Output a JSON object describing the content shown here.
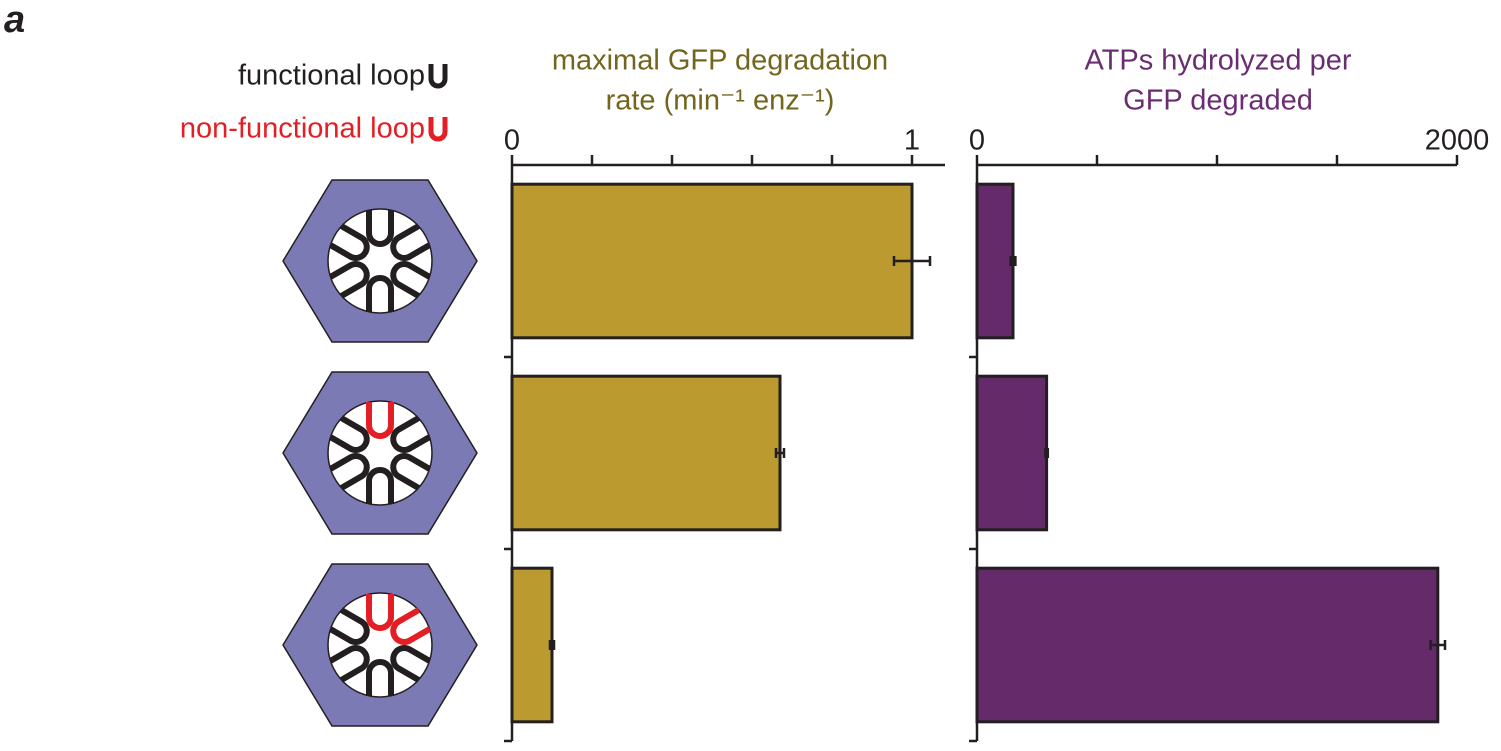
{
  "panel_label": "a",
  "legend": [
    {
      "name": "functional loop",
      "color": "#231f20"
    },
    {
      "name": "non-functional loop",
      "color": "#e31e24"
    }
  ],
  "chart_data": [
    {
      "type": "bar",
      "orientation": "horizontal",
      "title": [
        "maximal GFP degradation",
        "rate (min⁻¹ enz⁻¹)"
      ],
      "title_color": "#73651d",
      "categories": [
        null,
        null,
        null
      ],
      "values": [
        1.0,
        0.67,
        0.1
      ],
      "errors": [
        0.045,
        0.01,
        0.005
      ],
      "color": "#bb9a30",
      "xlim": [
        0,
        1
      ],
      "xticks": [
        0,
        1
      ],
      "xticks_minor": [
        0.2,
        0.4,
        0.6,
        0.8
      ]
    },
    {
      "type": "bar",
      "orientation": "horizontal",
      "title": [
        "ATPs hydrolyzed per",
        "GFP degraded"
      ],
      "title_color": "#6a2d72",
      "categories": [
        null,
        null,
        null
      ],
      "values": [
        150,
        290,
        1920
      ],
      "errors": [
        10,
        5,
        30
      ],
      "color": "#652a6a",
      "xlim": [
        0,
        2000
      ],
      "xticks": [
        0,
        2000
      ],
      "xticks_minor": [
        500,
        1000,
        1500
      ]
    }
  ]
}
